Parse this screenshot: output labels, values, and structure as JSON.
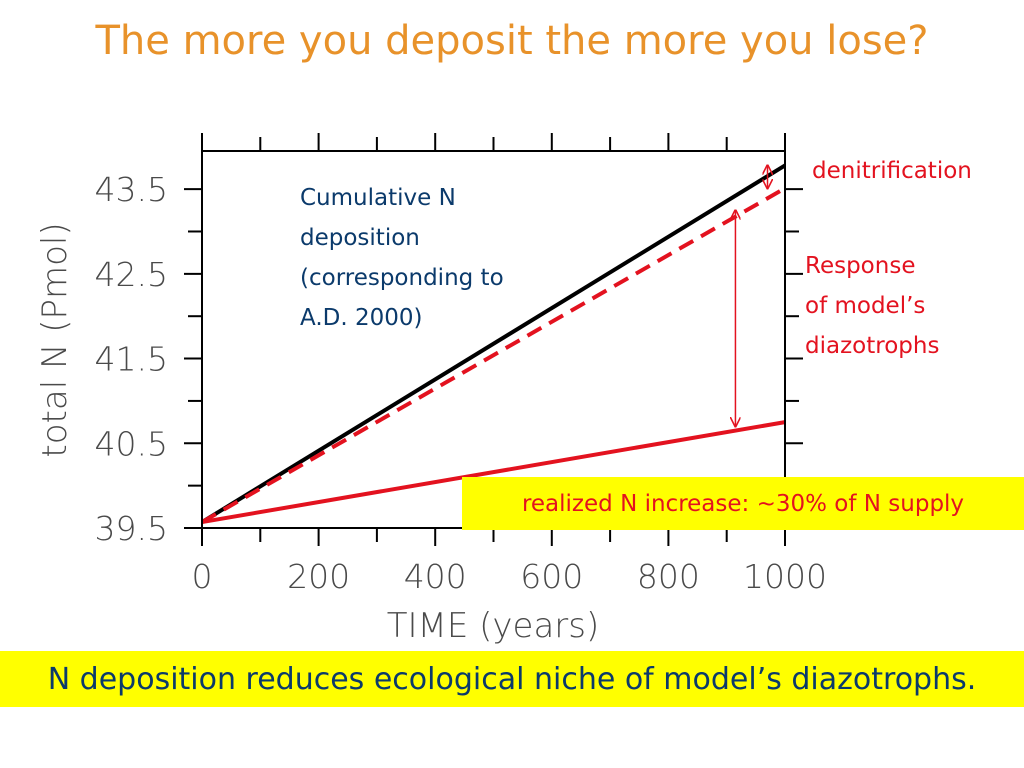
{
  "slide": {
    "title": "The more you deposit the more you lose?",
    "conclusion": "N deposition reduces ecological niche of model’s diazotrophs."
  },
  "annotations": {
    "cumulative": [
      "Cumulative N",
      "deposition",
      "(corresponding to",
      "A.D. 2000)"
    ],
    "denitrification": "denitrification",
    "response": [
      "Response",
      "of model’s",
      "diazotrophs"
    ],
    "realized": "realized N increase: ~30% of N supply"
  },
  "colors": {
    "title": "#e8922a",
    "annotation_blue": "#0b3a6b",
    "red": "#e3121f",
    "highlight": "#ffff00",
    "black": "#000000"
  },
  "chart_data": {
    "type": "line",
    "xlabel": "TIME (years)",
    "ylabel": "total N (Pmol)",
    "xlim": [
      0,
      1000
    ],
    "ylim": [
      39.5,
      43.95
    ],
    "xticks": [
      0,
      200,
      400,
      600,
      800,
      1000
    ],
    "yticks": [
      39.5,
      40.5,
      41.5,
      42.5,
      43.5
    ],
    "xtick_labels": [
      "0",
      "200",
      "400",
      "600",
      "800",
      "1000"
    ],
    "ytick_labels": [
      "39.5",
      "40.5",
      "41.5",
      "42.5",
      "43.5"
    ],
    "grid": false,
    "series": [
      {
        "color": "#000000",
        "style": "solid",
        "x": [
          0,
          1000
        ],
        "y": [
          39.57,
          43.78
        ]
      },
      {
        "color": "#e3121f",
        "style": "dashed",
        "x": [
          0,
          1000
        ],
        "y": [
          39.57,
          43.51
        ]
      },
      {
        "color": "#e3121f",
        "style": "solid",
        "x": [
          0,
          1000
        ],
        "y": [
          39.57,
          40.75
        ]
      }
    ],
    "arrows": [
      {
        "x": 970,
        "from": 43.51,
        "to": 43.78
      },
      {
        "x": 915,
        "from": 40.7,
        "to": 43.25
      }
    ]
  }
}
